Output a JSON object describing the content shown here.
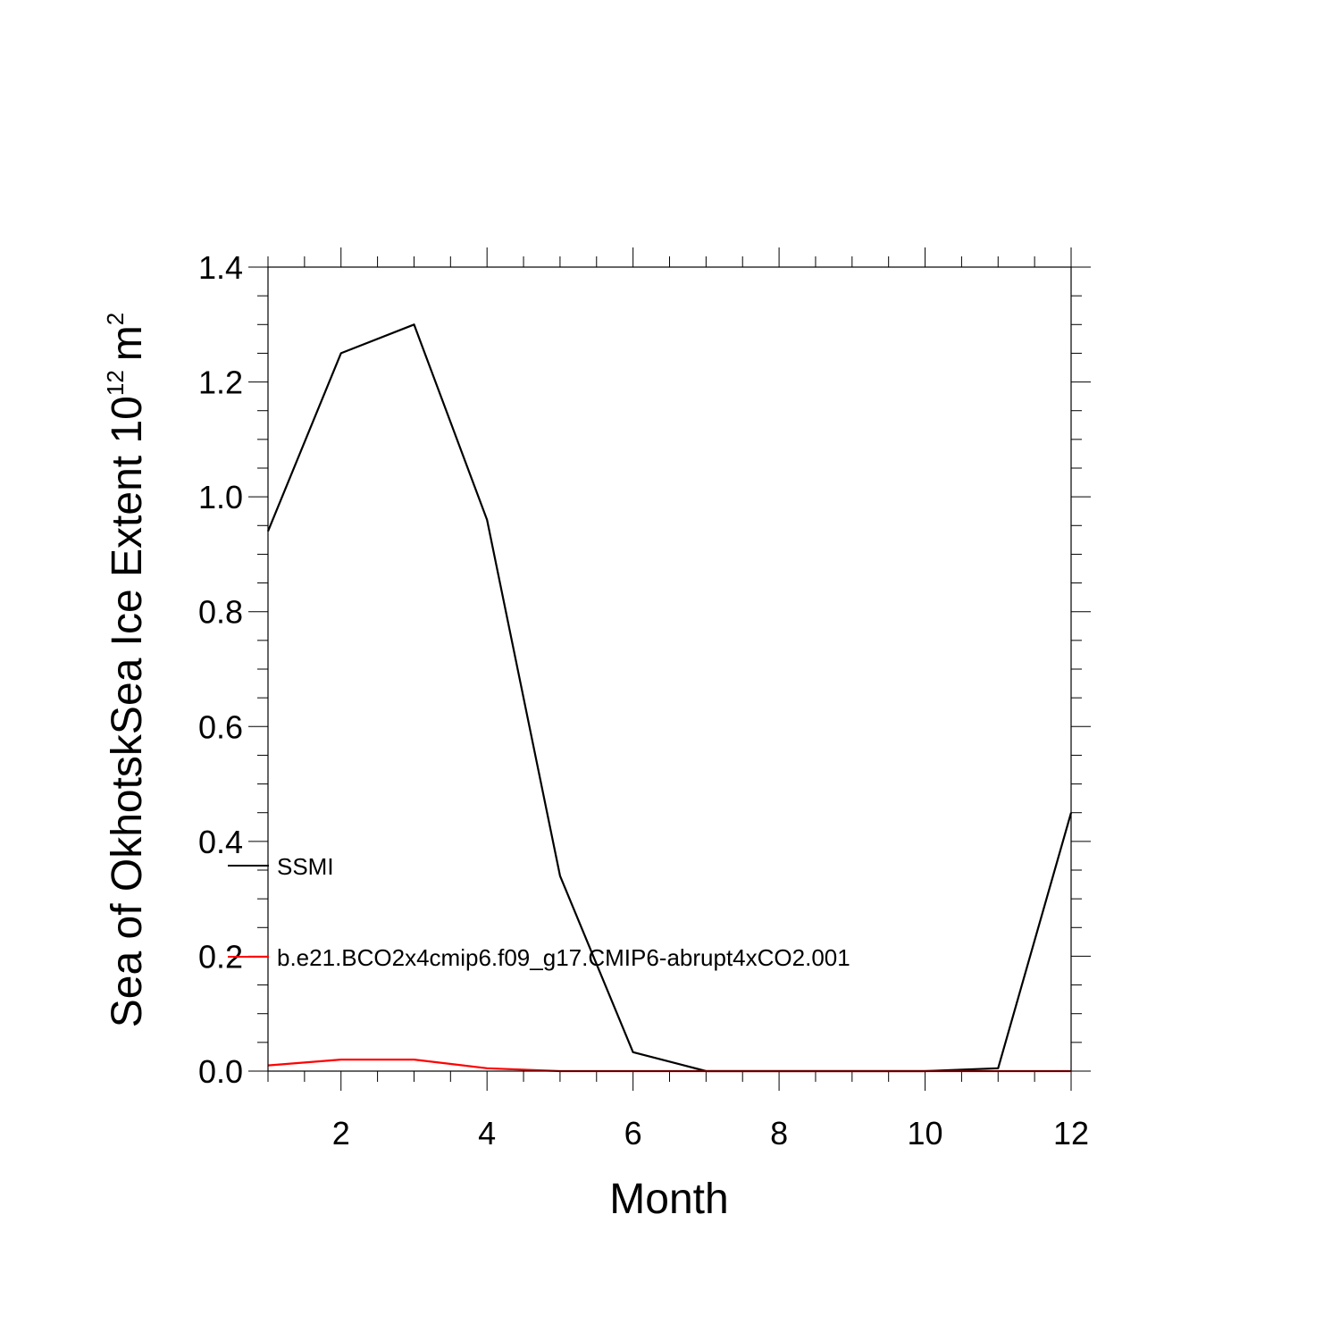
{
  "chart_data": {
    "type": "line",
    "title": "",
    "xlabel": "Month",
    "ylabel": "Sea of OkhotskSea Ice Extent 10",
    "ylabel_exponent": "12",
    "ylabel_unit": "m",
    "ylabel_unit_exponent": "2",
    "xlim": [
      1,
      12
    ],
    "ylim": [
      0,
      1.4
    ],
    "x_ticks": [
      "2",
      "4",
      "6",
      "8",
      "10",
      "12"
    ],
    "y_ticks": [
      "0.0",
      "0.2",
      "0.4",
      "0.6",
      "0.8",
      "1.0",
      "1.2",
      "1.4"
    ],
    "grid": false,
    "legend_position": "left, inside plot",
    "x": [
      1,
      2,
      3,
      4,
      5,
      6,
      7,
      8,
      9,
      10,
      11,
      12
    ],
    "series": [
      {
        "name": "SSMI",
        "color": "#000000",
        "values": [
          0.94,
          1.25,
          1.3,
          0.96,
          0.34,
          0.033,
          0.0,
          0.0,
          0.0,
          0.0,
          0.005,
          0.45
        ]
      },
      {
        "name": "b.e21.BCO2x4cmip6.f09_g17.CMIP6-abrupt4xCO2.001",
        "color": "#ff0000",
        "values": [
          0.01,
          0.02,
          0.02,
          0.005,
          0.0,
          0.0,
          0.0,
          0.0,
          0.0,
          0.0,
          0.0,
          0.0
        ]
      }
    ]
  }
}
